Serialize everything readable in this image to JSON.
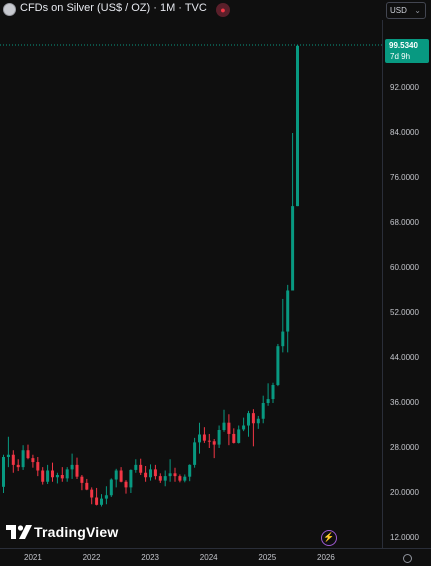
{
  "header": {
    "title": "CFDs on Silver (US$ / OZ) · 1M · TVC",
    "currency": "USD"
  },
  "price_axis": {
    "ticks": [
      "92.0000",
      "84.0000",
      "76.0000",
      "68.0000",
      "60.0000",
      "52.0000",
      "44.0000",
      "36.0000",
      "28.0000",
      "20.0000",
      "12.0000"
    ]
  },
  "price_label": {
    "price": "99.5340",
    "countdown": "7d 9h"
  },
  "time_axis": {
    "ticks": [
      "2021",
      "2022",
      "2023",
      "2024",
      "2025",
      "2026"
    ]
  },
  "branding": {
    "logo_text": "TradingView"
  },
  "colors": {
    "up": "#089981",
    "down": "#f23645",
    "background": "#0f0f0f"
  },
  "chart_data": {
    "type": "candlestick",
    "interval": "1M",
    "ylim": [
      12,
      100
    ],
    "ohlc": [
      [
        21.1,
        26.8,
        20.0,
        26.4
      ],
      [
        26.4,
        30.0,
        24.6,
        26.8
      ],
      [
        26.8,
        27.6,
        23.6,
        25.0
      ],
      [
        25.0,
        26.0,
        23.9,
        24.6
      ],
      [
        24.6,
        28.5,
        24.1,
        27.6
      ],
      [
        27.6,
        28.6,
        26.0,
        26.2
      ],
      [
        26.2,
        26.8,
        24.5,
        25.5
      ],
      [
        25.5,
        26.4,
        23.0,
        24.0
      ],
      [
        24.0,
        24.6,
        21.5,
        22.0
      ],
      [
        22.0,
        25.0,
        21.6,
        24.0
      ],
      [
        24.0,
        25.4,
        22.0,
        22.8
      ],
      [
        22.8,
        23.6,
        21.7,
        23.2
      ],
      [
        23.2,
        24.6,
        22.0,
        22.6
      ],
      [
        22.6,
        24.6,
        22.0,
        24.2
      ],
      [
        24.2,
        27.0,
        22.5,
        25.0
      ],
      [
        25.0,
        26.3,
        22.5,
        22.9
      ],
      [
        22.9,
        23.2,
        20.5,
        21.8
      ],
      [
        21.8,
        22.5,
        20.5,
        20.6
      ],
      [
        20.6,
        21.0,
        18.0,
        19.2
      ],
      [
        19.2,
        20.9,
        17.8,
        17.9
      ],
      [
        17.9,
        19.8,
        17.6,
        19.0
      ],
      [
        19.0,
        21.2,
        18.0,
        19.6
      ],
      [
        19.6,
        22.6,
        19.3,
        22.4
      ],
      [
        22.4,
        24.3,
        21.0,
        24.0
      ],
      [
        24.0,
        24.6,
        21.9,
        22.0
      ],
      [
        22.0,
        22.3,
        19.9,
        21.0
      ],
      [
        21.0,
        24.2,
        20.0,
        24.1
      ],
      [
        24.1,
        26.0,
        23.6,
        25.0
      ],
      [
        25.0,
        26.1,
        23.2,
        23.6
      ],
      [
        23.6,
        24.8,
        22.0,
        22.8
      ],
      [
        22.8,
        25.1,
        22.2,
        24.2
      ],
      [
        24.2,
        25.0,
        22.4,
        23.0
      ],
      [
        23.0,
        23.5,
        21.8,
        22.2
      ],
      [
        22.2,
        24.0,
        21.2,
        23.0
      ],
      [
        23.0,
        26.0,
        22.0,
        23.5
      ],
      [
        23.5,
        24.5,
        22.0,
        23.0
      ],
      [
        23.0,
        23.3,
        21.9,
        22.2
      ],
      [
        22.2,
        23.3,
        21.9,
        22.9
      ],
      [
        22.9,
        25.1,
        22.1,
        25.0
      ],
      [
        25.0,
        29.8,
        24.5,
        29.0
      ],
      [
        29.0,
        32.5,
        27.0,
        30.4
      ],
      [
        30.4,
        31.7,
        28.9,
        29.3
      ],
      [
        29.3,
        30.5,
        28.0,
        29.2
      ],
      [
        29.2,
        29.6,
        26.2,
        28.6
      ],
      [
        28.6,
        32.0,
        28.0,
        31.2
      ],
      [
        31.2,
        34.8,
        30.9,
        32.5
      ],
      [
        32.5,
        34.0,
        28.5,
        30.5
      ],
      [
        30.5,
        31.5,
        28.8,
        28.9
      ],
      [
        28.9,
        32.0,
        28.8,
        31.3
      ],
      [
        31.3,
        33.4,
        31.0,
        32.0
      ],
      [
        32.0,
        34.6,
        30.0,
        34.2
      ],
      [
        34.2,
        34.9,
        28.3,
        32.4
      ],
      [
        32.4,
        33.7,
        31.4,
        33.2
      ],
      [
        33.2,
        37.3,
        32.4,
        36.0
      ],
      [
        36.0,
        39.5,
        35.5,
        36.7
      ],
      [
        36.7,
        39.6,
        36.0,
        39.2
      ],
      [
        39.2,
        46.5,
        39.0,
        46.1
      ],
      [
        46.1,
        54.5,
        45.0,
        48.7
      ],
      [
        48.7,
        57.0,
        45.0,
        56.0
      ],
      [
        56.0,
        84.0,
        56.0,
        71.0
      ],
      [
        71.0,
        99.6,
        71.0,
        99.5
      ]
    ]
  }
}
